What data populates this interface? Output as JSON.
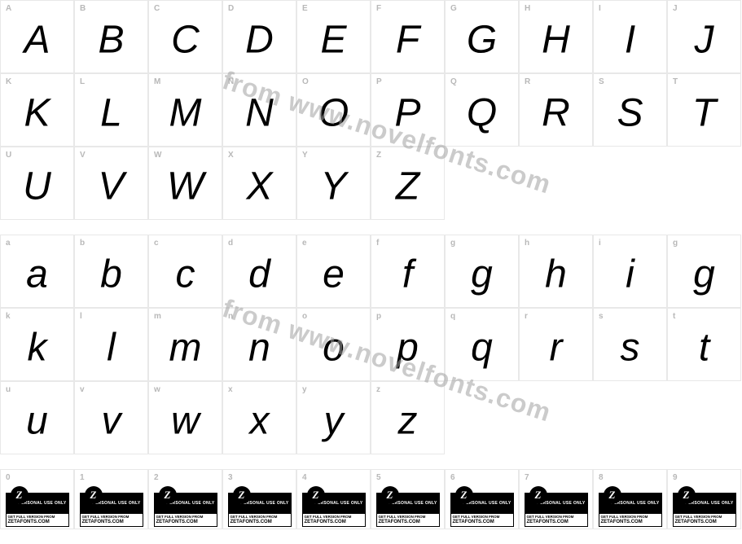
{
  "watermark_text": "from www.novelfonts.com",
  "watermark_color": "rgba(160,160,160,0.55)",
  "watermark_fontsize": 32,
  "watermark_rotation_deg": 18,
  "cell_border_color": "#e8e8e8",
  "label_color": "#b8b8b8",
  "glyph_color": "#000000",
  "background_color": "#ffffff",
  "glyph_fontsize": 48,
  "glyph_style": "italic",
  "glyph_weight": 200,
  "label_fontsize": 10,
  "rows_upper": [
    [
      {
        "label": "A",
        "glyph": "A"
      },
      {
        "label": "B",
        "glyph": "B"
      },
      {
        "label": "C",
        "glyph": "C"
      },
      {
        "label": "D",
        "glyph": "D"
      },
      {
        "label": "E",
        "glyph": "E"
      },
      {
        "label": "F",
        "glyph": "F"
      },
      {
        "label": "G",
        "glyph": "G"
      },
      {
        "label": "H",
        "glyph": "H"
      },
      {
        "label": "I",
        "glyph": "I"
      },
      {
        "label": "J",
        "glyph": "J"
      }
    ],
    [
      {
        "label": "K",
        "glyph": "K"
      },
      {
        "label": "L",
        "glyph": "L"
      },
      {
        "label": "M",
        "glyph": "M"
      },
      {
        "label": "N",
        "glyph": "N"
      },
      {
        "label": "O",
        "glyph": "O"
      },
      {
        "label": "P",
        "glyph": "P"
      },
      {
        "label": "Q",
        "glyph": "Q"
      },
      {
        "label": "R",
        "glyph": "R"
      },
      {
        "label": "S",
        "glyph": "S"
      },
      {
        "label": "T",
        "glyph": "T"
      }
    ],
    [
      {
        "label": "U",
        "glyph": "U"
      },
      {
        "label": "V",
        "glyph": "V"
      },
      {
        "label": "W",
        "glyph": "W"
      },
      {
        "label": "X",
        "glyph": "X"
      },
      {
        "label": "Y",
        "glyph": "Y"
      },
      {
        "label": "Z",
        "glyph": "Z"
      },
      {
        "empty": true
      },
      {
        "empty": true
      },
      {
        "empty": true
      },
      {
        "empty": true
      }
    ]
  ],
  "rows_lower": [
    [
      {
        "label": "a",
        "glyph": "a"
      },
      {
        "label": "b",
        "glyph": "b"
      },
      {
        "label": "c",
        "glyph": "c"
      },
      {
        "label": "d",
        "glyph": "d"
      },
      {
        "label": "e",
        "glyph": "e"
      },
      {
        "label": "f",
        "glyph": "f"
      },
      {
        "label": "g",
        "glyph": "g"
      },
      {
        "label": "h",
        "glyph": "h"
      },
      {
        "label": "i",
        "glyph": "i"
      },
      {
        "label": "g",
        "glyph": "g"
      }
    ],
    [
      {
        "label": "k",
        "glyph": "k"
      },
      {
        "label": "l",
        "glyph": "l"
      },
      {
        "label": "m",
        "glyph": "m"
      },
      {
        "label": "n",
        "glyph": "n"
      },
      {
        "label": "o",
        "glyph": "o"
      },
      {
        "label": "p",
        "glyph": "p"
      },
      {
        "label": "q",
        "glyph": "q"
      },
      {
        "label": "r",
        "glyph": "r"
      },
      {
        "label": "s",
        "glyph": "s"
      },
      {
        "label": "t",
        "glyph": "t"
      }
    ],
    [
      {
        "label": "u",
        "glyph": "u"
      },
      {
        "label": "v",
        "glyph": "v"
      },
      {
        "label": "w",
        "glyph": "w"
      },
      {
        "label": "x",
        "glyph": "x"
      },
      {
        "label": "y",
        "glyph": "y"
      },
      {
        "label": "z",
        "glyph": "z"
      },
      {
        "empty": true
      },
      {
        "empty": true
      },
      {
        "empty": true
      },
      {
        "empty": true
      }
    ]
  ],
  "digits": [
    "0",
    "1",
    "2",
    "3",
    "4",
    "5",
    "6",
    "7",
    "8",
    "9"
  ],
  "badge": {
    "top_text": "PERSONAL USE ONLY",
    "bottom_line1": "GET FULL VERSION FROM",
    "bottom_line2": "ZETAFONTS.COM",
    "z_glyph": "Z",
    "bg_color": "#000000",
    "text_color": "#ffffff"
  }
}
